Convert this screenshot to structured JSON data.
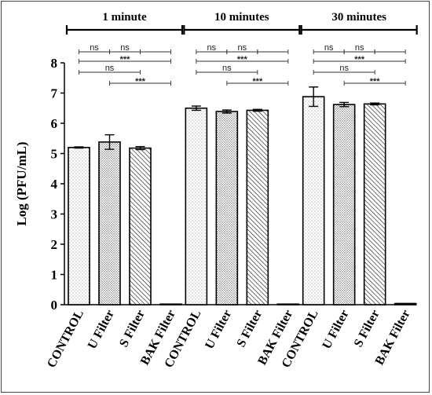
{
  "chart_data": {
    "type": "bar",
    "ylabel": "Log (PFU/mL)",
    "ylim": [
      0,
      8
    ],
    "yticks": [
      "0",
      "1",
      "2",
      "3",
      "4",
      "5",
      "6",
      "7",
      "8"
    ],
    "categories": [
      "CONTROL",
      "U Filter",
      "S Filter",
      "BAK Filter"
    ],
    "patterns": [
      "sparse-dots",
      "dense-dots",
      "diagonal-hatch",
      "none"
    ],
    "groups": [
      {
        "label": "1 minute",
        "values": [
          5.2,
          5.38,
          5.18,
          0.02
        ],
        "errors": [
          0.02,
          0.24,
          0.05,
          0.0
        ],
        "comparisons": [
          {
            "from": 0,
            "to": 1,
            "label": "ns",
            "row": 0
          },
          {
            "from": 1,
            "to": 2,
            "label": "ns",
            "row": 0
          },
          {
            "from": 2,
            "to": 3,
            "label": "",
            "row": 0
          },
          {
            "from": 0,
            "to": 3,
            "label": "***",
            "row": 1
          },
          {
            "from": 0,
            "to": 2,
            "label": "ns",
            "row": 2
          },
          {
            "from": 1,
            "to": 3,
            "label": "***",
            "row": 3
          }
        ]
      },
      {
        "label": "10 minutes",
        "values": [
          6.5,
          6.39,
          6.43,
          0.02
        ],
        "errors": [
          0.07,
          0.05,
          0.03,
          0.0
        ],
        "comparisons": [
          {
            "from": 0,
            "to": 1,
            "label": "ns",
            "row": 0
          },
          {
            "from": 1,
            "to": 2,
            "label": "ns",
            "row": 0
          },
          {
            "from": 2,
            "to": 3,
            "label": "",
            "row": 0
          },
          {
            "from": 0,
            "to": 3,
            "label": "***",
            "row": 1
          },
          {
            "from": 0,
            "to": 2,
            "label": "ns",
            "row": 2
          },
          {
            "from": 1,
            "to": 3,
            "label": "***",
            "row": 3
          }
        ]
      },
      {
        "label": "30 minutes",
        "values": [
          6.88,
          6.62,
          6.64,
          0.04
        ],
        "errors": [
          0.32,
          0.07,
          0.03,
          0.0
        ],
        "comparisons": [
          {
            "from": 0,
            "to": 1,
            "label": "ns",
            "row": 0
          },
          {
            "from": 1,
            "to": 2,
            "label": "ns",
            "row": 0
          },
          {
            "from": 2,
            "to": 3,
            "label": "",
            "row": 0
          },
          {
            "from": 0,
            "to": 3,
            "label": "***",
            "row": 1
          },
          {
            "from": 0,
            "to": 2,
            "label": "ns",
            "row": 2
          },
          {
            "from": 1,
            "to": 3,
            "label": "***",
            "row": 3
          }
        ]
      }
    ]
  }
}
